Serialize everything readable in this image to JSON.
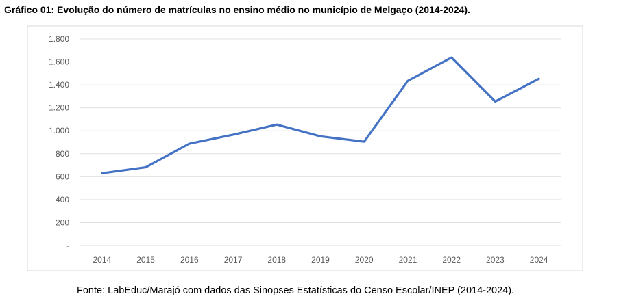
{
  "chart_data": {
    "type": "line",
    "title": "Gráfico 01: Evolução do número de matrículas no ensino médio no município de Melgaço (2014-2024).",
    "categories": [
      "2014",
      "2015",
      "2016",
      "2017",
      "2018",
      "2019",
      "2020",
      "2021",
      "2022",
      "2023",
      "2024"
    ],
    "series": [
      {
        "values": [
          630,
          682,
          888,
          966,
          1054,
          952,
          905,
          1435,
          1638,
          1255,
          1453
        ],
        "color": "#4472C4"
      }
    ],
    "ylim": [
      0,
      1800
    ],
    "yticks": [
      "-",
      "200",
      "400",
      "600",
      "800",
      "1.000",
      "1.200",
      "1.400",
      "1.600",
      "1.800"
    ],
    "grid": true,
    "legend": "none",
    "xlabel": "",
    "ylabel": ""
  },
  "source": "Fonte: LabEduc/Marajó com dados das Sinopses Estatísticas do Censo Escolar/INEP (2014-2024)."
}
